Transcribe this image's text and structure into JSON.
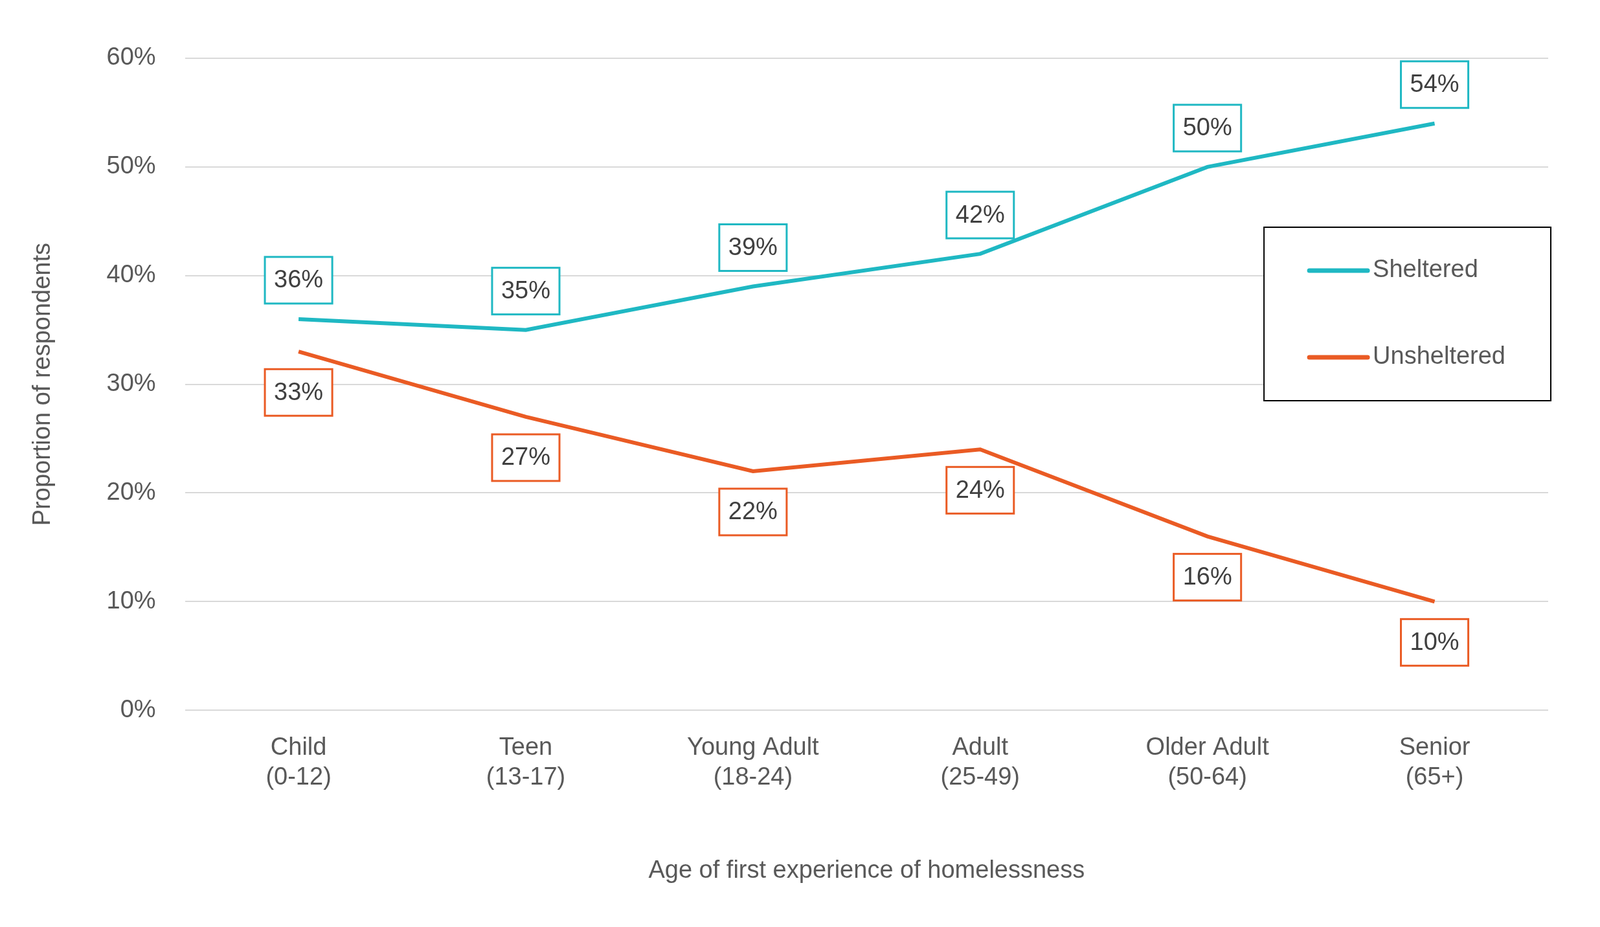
{
  "chart_data": {
    "type": "line",
    "x_label": "Age of first experience of homelessness",
    "y_label": "Proportion of respondents",
    "categories": [
      "Child (0-12)",
      "Teen (13-17)",
      "Young Adult (18-24)",
      "Adult (25-49)",
      "Older Adult (50-64)",
      "Senior (65+)"
    ],
    "series": [
      {
        "name": "Sheltered",
        "color": "#1fb8c3",
        "values": [
          36,
          35,
          39,
          42,
          50,
          54
        ],
        "value_labels": [
          "36%",
          "35%",
          "39%",
          "42%",
          "50%",
          "54%"
        ]
      },
      {
        "name": "Unsheltered",
        "color": "#ea5b24",
        "values": [
          33,
          27,
          22,
          24,
          16,
          10
        ],
        "value_labels": [
          "33%",
          "27%",
          "22%",
          "24%",
          "16%",
          "10%"
        ]
      }
    ],
    "ylim": [
      0,
      60
    ],
    "yticks": [
      {
        "value": 0,
        "label": "0%"
      },
      {
        "value": 10,
        "label": "10%"
      },
      {
        "value": 20,
        "label": "20%"
      },
      {
        "value": 30,
        "label": "30%"
      },
      {
        "value": 40,
        "label": "40%"
      },
      {
        "value": 50,
        "label": "50%"
      },
      {
        "value": 60,
        "label": "60%"
      }
    ],
    "grid": true,
    "legend": "right",
    "data_labels": true
  }
}
